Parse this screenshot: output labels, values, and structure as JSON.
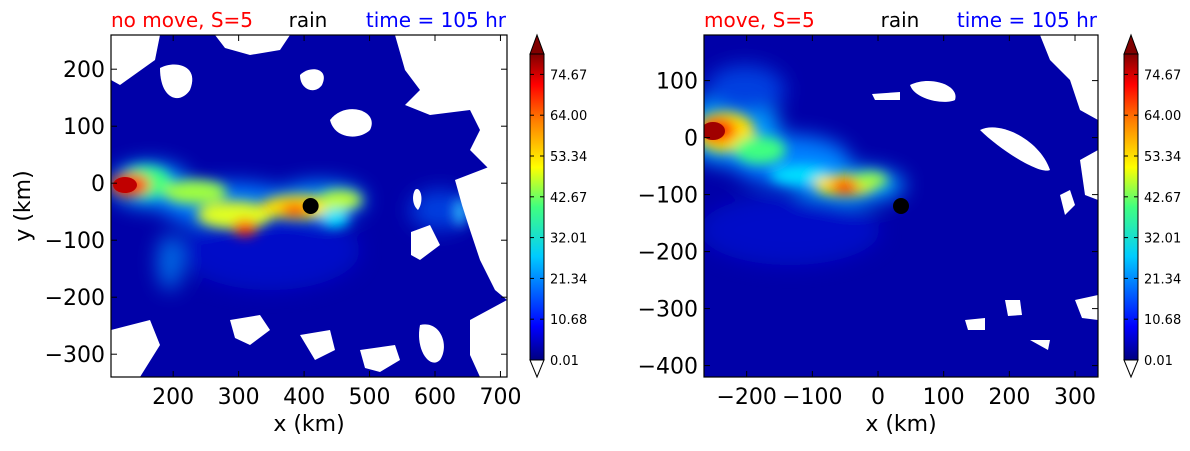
{
  "figure": {
    "panels": [
      {
        "title_left": "no move, S=5",
        "title_mid": "rain",
        "title_right": "time = 105 hr",
        "xlabel": "x (km)",
        "ylabel": "y (km)"
      },
      {
        "title_left": "move, S=5",
        "title_mid": "rain",
        "title_right": "time = 105 hr",
        "xlabel": "x (km)",
        "ylabel": ""
      }
    ],
    "colors": {
      "title_left": "#ff0000",
      "title_mid": "#000000",
      "title_right": "#0000ff",
      "field_background": "#0000a8",
      "marker": "#000000"
    }
  },
  "chart_data": [
    {
      "type": "heatmap",
      "title": "no move, S=5   rain   time = 105 hr",
      "xlabel": "x (km)",
      "ylabel": "y (km)",
      "xlim": [
        105,
        710
      ],
      "ylim": [
        -340,
        260
      ],
      "xticks": [
        200,
        300,
        400,
        500,
        600,
        700
      ],
      "yticks": [
        200,
        100,
        0,
        -100,
        -200,
        -300
      ],
      "colorbar": {
        "ticks": [
          "0.01",
          "10.68",
          "21.34",
          "32.01",
          "42.67",
          "53.34",
          "64.00",
          "74.67"
        ],
        "range": [
          0.01,
          80
        ],
        "extend": "both",
        "colormap": "jet"
      },
      "marker": {
        "x": 410,
        "y": -40
      },
      "rain_features": [
        {
          "x": 140,
          "y": 0,
          "value": 76
        },
        {
          "x": 185,
          "y": -15,
          "value": 48
        },
        {
          "x": 235,
          "y": -80,
          "value": 64
        },
        {
          "x": 300,
          "y": -55,
          "value": 70
        },
        {
          "x": 335,
          "y": -45,
          "value": 47
        },
        {
          "x": 460,
          "y": -65,
          "value": 30
        },
        {
          "x": 175,
          "y": -160,
          "value": 28
        }
      ]
    },
    {
      "type": "heatmap",
      "title": "move, S=5   rain   time = 105 hr",
      "xlabel": "x (km)",
      "ylabel": "",
      "xlim": [
        -265,
        335
      ],
      "ylim": [
        -420,
        180
      ],
      "xticks": [
        -200,
        -100,
        0,
        100,
        200,
        300
      ],
      "yticks": [
        100,
        0,
        -100,
        -200,
        -300,
        -400
      ],
      "colorbar": {
        "ticks": [
          "0.01",
          "10.68",
          "21.34",
          "32.01",
          "42.67",
          "53.34",
          "64.00",
          "74.67"
        ],
        "range": [
          0.01,
          80
        ],
        "extend": "both",
        "colormap": "jet"
      },
      "marker": {
        "x": 35,
        "y": -120
      },
      "rain_features": [
        {
          "x": -245,
          "y": 15,
          "value": 80
        },
        {
          "x": -175,
          "y": -30,
          "value": 40
        },
        {
          "x": -100,
          "y": -70,
          "value": 32
        },
        {
          "x": -55,
          "y": -88,
          "value": 76
        },
        {
          "x": -30,
          "y": -90,
          "value": 50
        }
      ]
    }
  ]
}
